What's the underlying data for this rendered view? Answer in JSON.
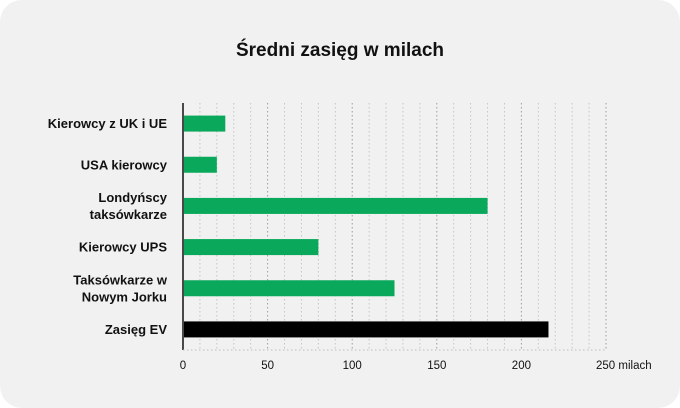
{
  "chart_data": {
    "type": "bar",
    "orientation": "horizontal",
    "title": "Średni zasięg w milach",
    "categories": [
      [
        "Kierowcy z UK i UE"
      ],
      [
        "USA kierowcy"
      ],
      [
        "Londyńscy",
        "taksówkarze"
      ],
      [
        "Kierowcy UPS"
      ],
      [
        "Taksówkarze w",
        "Nowym Jorku"
      ],
      [
        "Zasięg EV"
      ]
    ],
    "values": [
      25,
      20,
      180,
      80,
      125,
      216
    ],
    "bar_colors": [
      "#0aa85a",
      "#0aa85a",
      "#0aa85a",
      "#0aa85a",
      "#0aa85a",
      "#000000"
    ],
    "xlim": [
      0,
      250
    ],
    "xticks": [
      0,
      50,
      100,
      150,
      200,
      250
    ],
    "xtick_labels": [
      "0",
      "50",
      "100",
      "150",
      "200",
      "250 milach"
    ],
    "grid": "vertical dotted"
  }
}
